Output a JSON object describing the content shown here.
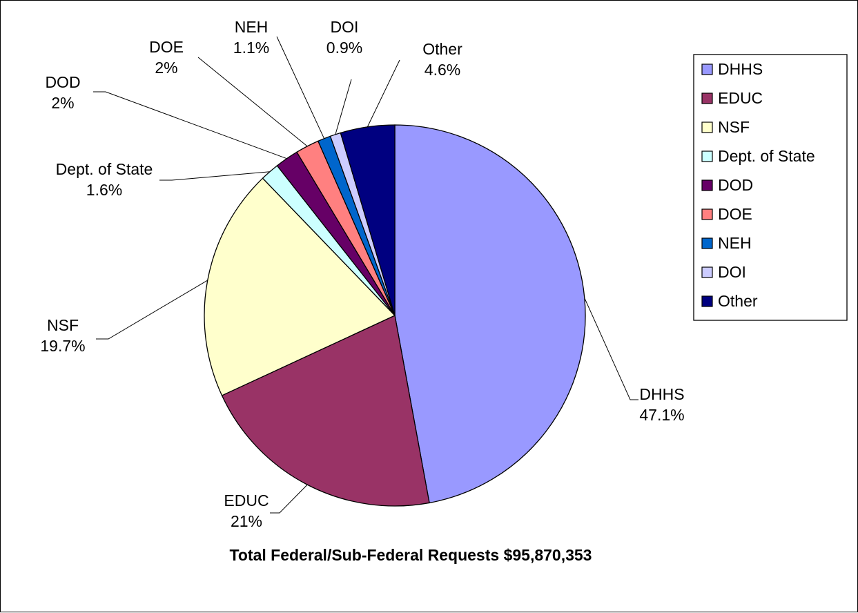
{
  "chart_data": {
    "type": "pie",
    "title": "Total Federal/Sub-Federal Requests $95,870,353",
    "legend_position": "right",
    "slices": [
      {
        "name": "DHHS",
        "value": 47.1,
        "label": "47.1%",
        "color": "#9999ff"
      },
      {
        "name": "EDUC",
        "value": 21,
        "label": "21%",
        "color": "#993366"
      },
      {
        "name": "NSF",
        "value": 19.7,
        "label": "19.7%",
        "color": "#ffffcc"
      },
      {
        "name": "Dept. of State",
        "value": 1.6,
        "label": "1.6%",
        "color": "#ccffff"
      },
      {
        "name": "DOD",
        "value": 2,
        "label": "2%",
        "color": "#660066"
      },
      {
        "name": "DOE",
        "value": 2,
        "label": "2%",
        "color": "#ff8080"
      },
      {
        "name": "NEH",
        "value": 1.1,
        "label": "1.1%",
        "color": "#0066cc"
      },
      {
        "name": "DOI",
        "value": 0.9,
        "label": "0.9%",
        "color": "#ccccff"
      },
      {
        "name": "Other",
        "value": 4.6,
        "label": "4.6%",
        "color": "#000080"
      }
    ]
  }
}
